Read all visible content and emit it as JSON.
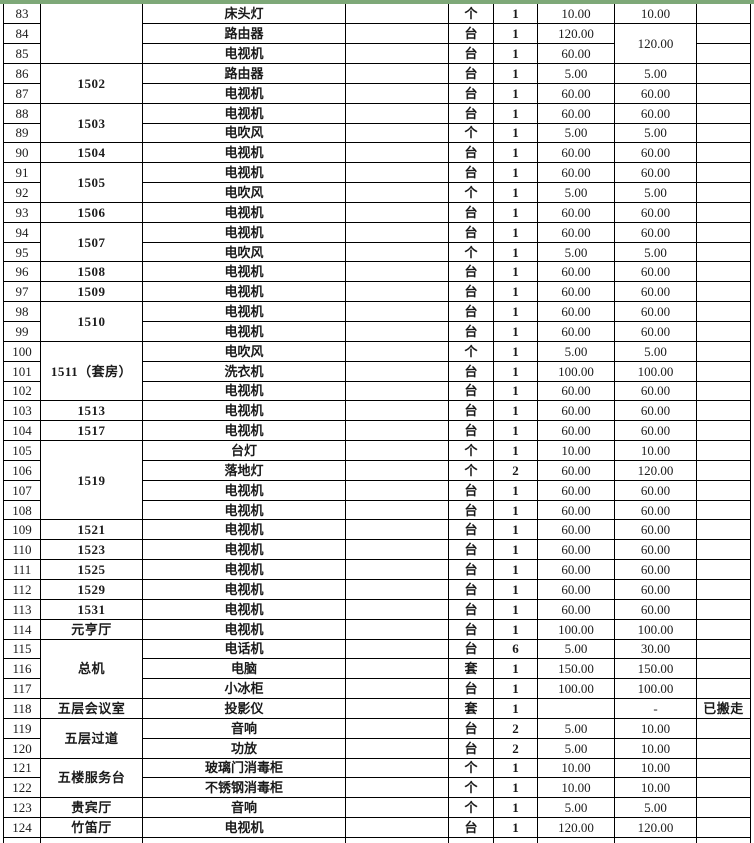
{
  "top_line_color": "#7ea878",
  "grid_color": "#000000",
  "sheet": {
    "visible_row_range": "83-124",
    "rows": [
      {
        "num": "83",
        "loc": {
          "text": "",
          "span": 3
        },
        "item": "床头灯",
        "unit": "个",
        "qty": "1",
        "price": "10.00",
        "total": {
          "text": "10.00",
          "span": 1
        },
        "note": ""
      },
      {
        "num": "84",
        "item": "路由器",
        "unit": "台",
        "qty": "1",
        "price": "120.00",
        "total": {
          "text": "120.00",
          "span": 2
        },
        "note": ""
      },
      {
        "num": "85",
        "item": "电视机",
        "unit": "台",
        "qty": "1",
        "price": "60.00",
        "note": ""
      },
      {
        "num": "86",
        "loc": {
          "text": "1502",
          "span": 2
        },
        "item": "路由器",
        "unit": "台",
        "qty": "1",
        "price": "5.00",
        "total": {
          "text": "5.00",
          "span": 1
        },
        "note": ""
      },
      {
        "num": "87",
        "item": "电视机",
        "unit": "台",
        "qty": "1",
        "price": "60.00",
        "total": {
          "text": "60.00",
          "span": 1
        },
        "note": ""
      },
      {
        "num": "88",
        "loc": {
          "text": "1503",
          "span": 2
        },
        "item": "电视机",
        "unit": "台",
        "qty": "1",
        "price": "60.00",
        "total": {
          "text": "60.00",
          "span": 1
        },
        "note": ""
      },
      {
        "num": "89",
        "item": "电吹风",
        "unit": "个",
        "qty": "1",
        "price": "5.00",
        "total": {
          "text": "5.00",
          "span": 1
        },
        "note": ""
      },
      {
        "num": "90",
        "loc": {
          "text": "1504",
          "span": 1
        },
        "item": "电视机",
        "unit": "台",
        "qty": "1",
        "price": "60.00",
        "total": {
          "text": "60.00",
          "span": 1
        },
        "note": ""
      },
      {
        "num": "91",
        "loc": {
          "text": "1505",
          "span": 2
        },
        "item": "电视机",
        "unit": "台",
        "qty": "1",
        "price": "60.00",
        "total": {
          "text": "60.00",
          "span": 1
        },
        "note": ""
      },
      {
        "num": "92",
        "item": "电吹风",
        "unit": "个",
        "qty": "1",
        "price": "5.00",
        "total": {
          "text": "5.00",
          "span": 1
        },
        "note": ""
      },
      {
        "num": "93",
        "loc": {
          "text": "1506",
          "span": 1
        },
        "item": "电视机",
        "unit": "台",
        "qty": "1",
        "price": "60.00",
        "total": {
          "text": "60.00",
          "span": 1
        },
        "note": ""
      },
      {
        "num": "94",
        "loc": {
          "text": "1507",
          "span": 2
        },
        "item": "电视机",
        "unit": "台",
        "qty": "1",
        "price": "60.00",
        "total": {
          "text": "60.00",
          "span": 1
        },
        "note": ""
      },
      {
        "num": "95",
        "item": "电吹风",
        "unit": "个",
        "qty": "1",
        "price": "5.00",
        "total": {
          "text": "5.00",
          "span": 1
        },
        "note": ""
      },
      {
        "num": "96",
        "loc": {
          "text": "1508",
          "span": 1
        },
        "item": "电视机",
        "unit": "台",
        "qty": "1",
        "price": "60.00",
        "total": {
          "text": "60.00",
          "span": 1
        },
        "note": ""
      },
      {
        "num": "97",
        "loc": {
          "text": "1509",
          "span": 1
        },
        "item": "电视机",
        "unit": "台",
        "qty": "1",
        "price": "60.00",
        "total": {
          "text": "60.00",
          "span": 1
        },
        "note": ""
      },
      {
        "num": "98",
        "loc": {
          "text": "1510",
          "span": 2
        },
        "item": "电视机",
        "unit": "台",
        "qty": "1",
        "price": "60.00",
        "total": {
          "text": "60.00",
          "span": 1
        },
        "note": ""
      },
      {
        "num": "99",
        "item": "电视机",
        "unit": "台",
        "qty": "1",
        "price": "60.00",
        "total": {
          "text": "60.00",
          "span": 1
        },
        "note": ""
      },
      {
        "num": "100",
        "loc": {
          "text": "1511（套房）",
          "span": 3
        },
        "item": "电吹风",
        "unit": "个",
        "qty": "1",
        "price": "5.00",
        "total": {
          "text": "5.00",
          "span": 1
        },
        "note": ""
      },
      {
        "num": "101",
        "item": "洗衣机",
        "unit": "台",
        "qty": "1",
        "price": "100.00",
        "total": {
          "text": "100.00",
          "span": 1
        },
        "note": ""
      },
      {
        "num": "102",
        "item": "电视机",
        "unit": "台",
        "qty": "1",
        "price": "60.00",
        "total": {
          "text": "60.00",
          "span": 1
        },
        "note": ""
      },
      {
        "num": "103",
        "loc": {
          "text": "1513",
          "span": 1
        },
        "item": "电视机",
        "unit": "台",
        "qty": "1",
        "price": "60.00",
        "total": {
          "text": "60.00",
          "span": 1
        },
        "note": ""
      },
      {
        "num": "104",
        "loc": {
          "text": "1517",
          "span": 1
        },
        "item": "电视机",
        "unit": "台",
        "qty": "1",
        "price": "60.00",
        "total": {
          "text": "60.00",
          "span": 1
        },
        "note": ""
      },
      {
        "num": "105",
        "loc": {
          "text": "1519",
          "span": 4
        },
        "item": "台灯",
        "unit": "个",
        "qty": "1",
        "price": "10.00",
        "total": {
          "text": "10.00",
          "span": 1
        },
        "note": ""
      },
      {
        "num": "106",
        "item": "落地灯",
        "unit": "个",
        "qty": "2",
        "price": "60.00",
        "total": {
          "text": "120.00",
          "span": 1
        },
        "note": ""
      },
      {
        "num": "107",
        "item": "电视机",
        "unit": "台",
        "qty": "1",
        "price": "60.00",
        "total": {
          "text": "60.00",
          "span": 1
        },
        "note": ""
      },
      {
        "num": "108",
        "item": "电视机",
        "unit": "台",
        "qty": "1",
        "price": "60.00",
        "total": {
          "text": "60.00",
          "span": 1
        },
        "note": ""
      },
      {
        "num": "109",
        "loc": {
          "text": "1521",
          "span": 1
        },
        "item": "电视机",
        "unit": "台",
        "qty": "1",
        "price": "60.00",
        "total": {
          "text": "60.00",
          "span": 1
        },
        "note": ""
      },
      {
        "num": "110",
        "loc": {
          "text": "1523",
          "span": 1
        },
        "item": "电视机",
        "unit": "台",
        "qty": "1",
        "price": "60.00",
        "total": {
          "text": "60.00",
          "span": 1
        },
        "note": ""
      },
      {
        "num": "111",
        "loc": {
          "text": "1525",
          "span": 1
        },
        "item": "电视机",
        "unit": "台",
        "qty": "1",
        "price": "60.00",
        "total": {
          "text": "60.00",
          "span": 1
        },
        "note": ""
      },
      {
        "num": "112",
        "loc": {
          "text": "1529",
          "span": 1
        },
        "item": "电视机",
        "unit": "台",
        "qty": "1",
        "price": "60.00",
        "total": {
          "text": "60.00",
          "span": 1
        },
        "note": ""
      },
      {
        "num": "113",
        "loc": {
          "text": "1531",
          "span": 1
        },
        "item": "电视机",
        "unit": "台",
        "qty": "1",
        "price": "60.00",
        "total": {
          "text": "60.00",
          "span": 1
        },
        "note": ""
      },
      {
        "num": "114",
        "loc": {
          "text": "元亨厅",
          "span": 1
        },
        "item": "电视机",
        "unit": "台",
        "qty": "1",
        "price": "100.00",
        "total": {
          "text": "100.00",
          "span": 1
        },
        "note": ""
      },
      {
        "num": "115",
        "loc": {
          "text": "总机",
          "span": 3
        },
        "item": "电话机",
        "unit": "台",
        "qty": "6",
        "price": "5.00",
        "total": {
          "text": "30.00",
          "span": 1
        },
        "note": ""
      },
      {
        "num": "116",
        "item": "电脑",
        "unit": "套",
        "qty": "1",
        "price": "150.00",
        "total": {
          "text": "150.00",
          "span": 1
        },
        "note": ""
      },
      {
        "num": "117",
        "item": "小冰柜",
        "unit": "台",
        "qty": "1",
        "price": "100.00",
        "total": {
          "text": "100.00",
          "span": 1
        },
        "note": ""
      },
      {
        "num": "118",
        "loc": {
          "text": "五层会议室",
          "span": 1
        },
        "item": "投影仪",
        "unit": "套",
        "qty": "1",
        "price": "",
        "total": {
          "text": "-",
          "span": 1
        },
        "note": "已搬走"
      },
      {
        "num": "119",
        "loc": {
          "text": "五层过道",
          "span": 2
        },
        "item": "音响",
        "unit": "台",
        "qty": "2",
        "price": "5.00",
        "total": {
          "text": "10.00",
          "span": 1
        },
        "note": ""
      },
      {
        "num": "120",
        "item": "功放",
        "unit": "台",
        "qty": "2",
        "price": "5.00",
        "total": {
          "text": "10.00",
          "span": 1
        },
        "note": ""
      },
      {
        "num": "121",
        "loc": {
          "text": "五楼服务台",
          "span": 2
        },
        "item": "玻璃门消毒柜",
        "unit": "个",
        "qty": "1",
        "price": "10.00",
        "total": {
          "text": "10.00",
          "span": 1
        },
        "note": ""
      },
      {
        "num": "122",
        "item": "不锈钢消毒柜",
        "unit": "个",
        "qty": "1",
        "price": "10.00",
        "total": {
          "text": "10.00",
          "span": 1
        },
        "note": ""
      },
      {
        "num": "123",
        "loc": {
          "text": "贵宾厅",
          "span": 1
        },
        "item": "音响",
        "unit": "个",
        "qty": "1",
        "price": "5.00",
        "total": {
          "text": "5.00",
          "span": 1
        },
        "note": ""
      },
      {
        "num": "124",
        "loc": {
          "text": "竹笛厅",
          "span": 1
        },
        "item": "电视机",
        "unit": "台",
        "qty": "1",
        "price": "120.00",
        "total": {
          "text": "120.00",
          "span": 1
        },
        "note": ""
      }
    ]
  }
}
